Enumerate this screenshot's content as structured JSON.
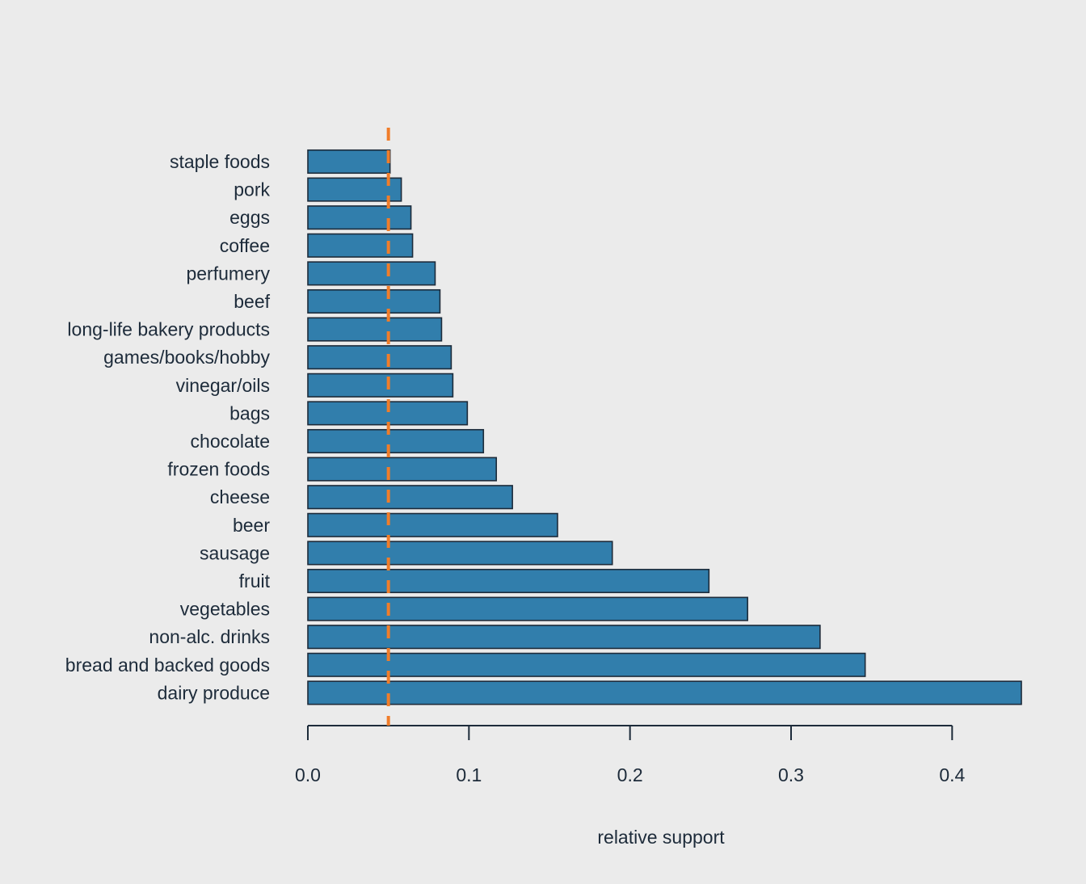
{
  "chart_data": {
    "type": "bar",
    "orientation": "horizontal",
    "categories": [
      "staple foods",
      "pork",
      "eggs",
      "coffee",
      "perfumery",
      "beef",
      "long-life bakery products",
      "games/books/hobby",
      "vinegar/oils",
      "bags",
      "chocolate",
      "frozen foods",
      "cheese",
      "beer",
      "sausage",
      "fruit",
      "vegetables",
      "non-alc. drinks",
      "bread and backed goods",
      "dairy produce"
    ],
    "values": [
      0.051,
      0.058,
      0.064,
      0.065,
      0.079,
      0.082,
      0.083,
      0.089,
      0.09,
      0.099,
      0.109,
      0.117,
      0.127,
      0.155,
      0.189,
      0.249,
      0.273,
      0.318,
      0.346,
      0.443
    ],
    "xlabel": "relative support",
    "ylabel": "",
    "xlim": [
      0,
      0.45
    ],
    "xticks": [
      0.0,
      0.1,
      0.2,
      0.3,
      0.4
    ],
    "xtick_labels": [
      "0.0",
      "0.1",
      "0.2",
      "0.3",
      "0.4"
    ],
    "reference_line": {
      "value": 0.05,
      "style": "dashed"
    },
    "grid": false,
    "legend": "none",
    "colors": {
      "bar_fill": "#317eac",
      "bar_stroke": "#1d2b3a",
      "reference_line": "#f07d2a",
      "axis": "#1d2b3a",
      "text": "#1d2b3a",
      "background": "#ebebeb"
    }
  }
}
